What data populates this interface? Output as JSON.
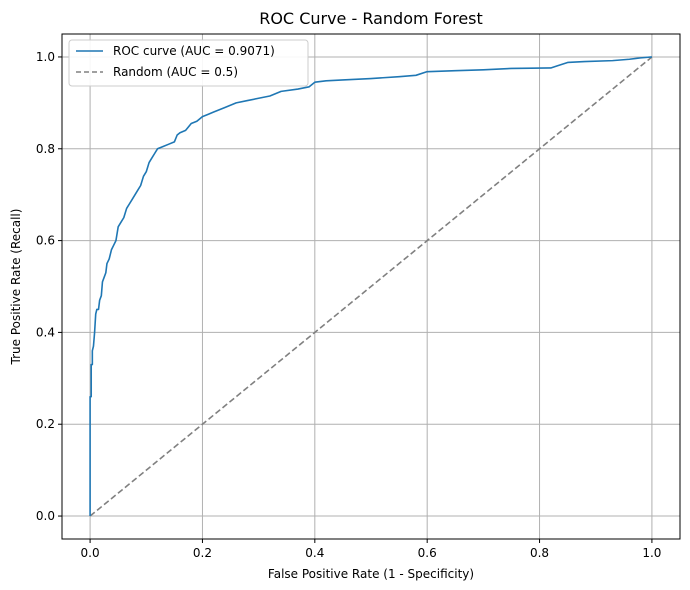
{
  "chart_data": {
    "type": "line",
    "title": "ROC Curve - Random Forest",
    "xlabel": "False Positive Rate (1 - Specificity)",
    "ylabel": "True Positive Rate (Recall)",
    "xlim": [
      -0.05,
      1.05
    ],
    "ylim": [
      -0.05,
      1.05
    ],
    "xticks": [
      0.0,
      0.2,
      0.4,
      0.6,
      0.8,
      1.0
    ],
    "yticks": [
      0.0,
      0.2,
      0.4,
      0.6,
      0.8,
      1.0
    ],
    "xtick_labels": [
      "0.0",
      "0.2",
      "0.4",
      "0.6",
      "0.8",
      "1.0"
    ],
    "ytick_labels": [
      "0.0",
      "0.2",
      "0.4",
      "0.6",
      "0.8",
      "1.0"
    ],
    "grid": true,
    "legend_position": "top-left",
    "series": [
      {
        "name": "ROC curve (AUC = 0.9071)",
        "color": "#1f77b4",
        "style": "solid",
        "points": [
          [
            0.0,
            0.0
          ],
          [
            0.0,
            0.26
          ],
          [
            0.002,
            0.26
          ],
          [
            0.002,
            0.33
          ],
          [
            0.004,
            0.33
          ],
          [
            0.004,
            0.36
          ],
          [
            0.006,
            0.37
          ],
          [
            0.008,
            0.4
          ],
          [
            0.01,
            0.44
          ],
          [
            0.012,
            0.45
          ],
          [
            0.015,
            0.45
          ],
          [
            0.017,
            0.47
          ],
          [
            0.02,
            0.48
          ],
          [
            0.022,
            0.51
          ],
          [
            0.025,
            0.52
          ],
          [
            0.028,
            0.53
          ],
          [
            0.03,
            0.55
          ],
          [
            0.034,
            0.56
          ],
          [
            0.038,
            0.58
          ],
          [
            0.042,
            0.59
          ],
          [
            0.046,
            0.6
          ],
          [
            0.05,
            0.63
          ],
          [
            0.055,
            0.64
          ],
          [
            0.06,
            0.65
          ],
          [
            0.065,
            0.67
          ],
          [
            0.07,
            0.68
          ],
          [
            0.075,
            0.69
          ],
          [
            0.08,
            0.7
          ],
          [
            0.085,
            0.71
          ],
          [
            0.09,
            0.72
          ],
          [
            0.095,
            0.74
          ],
          [
            0.1,
            0.75
          ],
          [
            0.105,
            0.77
          ],
          [
            0.11,
            0.78
          ],
          [
            0.115,
            0.79
          ],
          [
            0.12,
            0.8
          ],
          [
            0.13,
            0.805
          ],
          [
            0.14,
            0.81
          ],
          [
            0.15,
            0.815
          ],
          [
            0.155,
            0.83
          ],
          [
            0.16,
            0.835
          ],
          [
            0.17,
            0.84
          ],
          [
            0.18,
            0.855
          ],
          [
            0.19,
            0.86
          ],
          [
            0.2,
            0.87
          ],
          [
            0.21,
            0.875
          ],
          [
            0.22,
            0.88
          ],
          [
            0.24,
            0.89
          ],
          [
            0.26,
            0.9
          ],
          [
            0.28,
            0.905
          ],
          [
            0.3,
            0.91
          ],
          [
            0.32,
            0.915
          ],
          [
            0.34,
            0.925
          ],
          [
            0.37,
            0.93
          ],
          [
            0.39,
            0.935
          ],
          [
            0.4,
            0.945
          ],
          [
            0.42,
            0.948
          ],
          [
            0.45,
            0.95
          ],
          [
            0.5,
            0.953
          ],
          [
            0.55,
            0.957
          ],
          [
            0.58,
            0.96
          ],
          [
            0.6,
            0.968
          ],
          [
            0.65,
            0.97
          ],
          [
            0.7,
            0.972
          ],
          [
            0.75,
            0.975
          ],
          [
            0.82,
            0.976
          ],
          [
            0.83,
            0.98
          ],
          [
            0.85,
            0.988
          ],
          [
            0.88,
            0.99
          ],
          [
            0.93,
            0.992
          ],
          [
            0.96,
            0.995
          ],
          [
            0.98,
            0.998
          ],
          [
            1.0,
            1.0
          ]
        ]
      },
      {
        "name": "Random (AUC = 0.5)",
        "color": "#808080",
        "style": "dashed",
        "points": [
          [
            0.0,
            0.0
          ],
          [
            1.0,
            1.0
          ]
        ]
      }
    ]
  }
}
